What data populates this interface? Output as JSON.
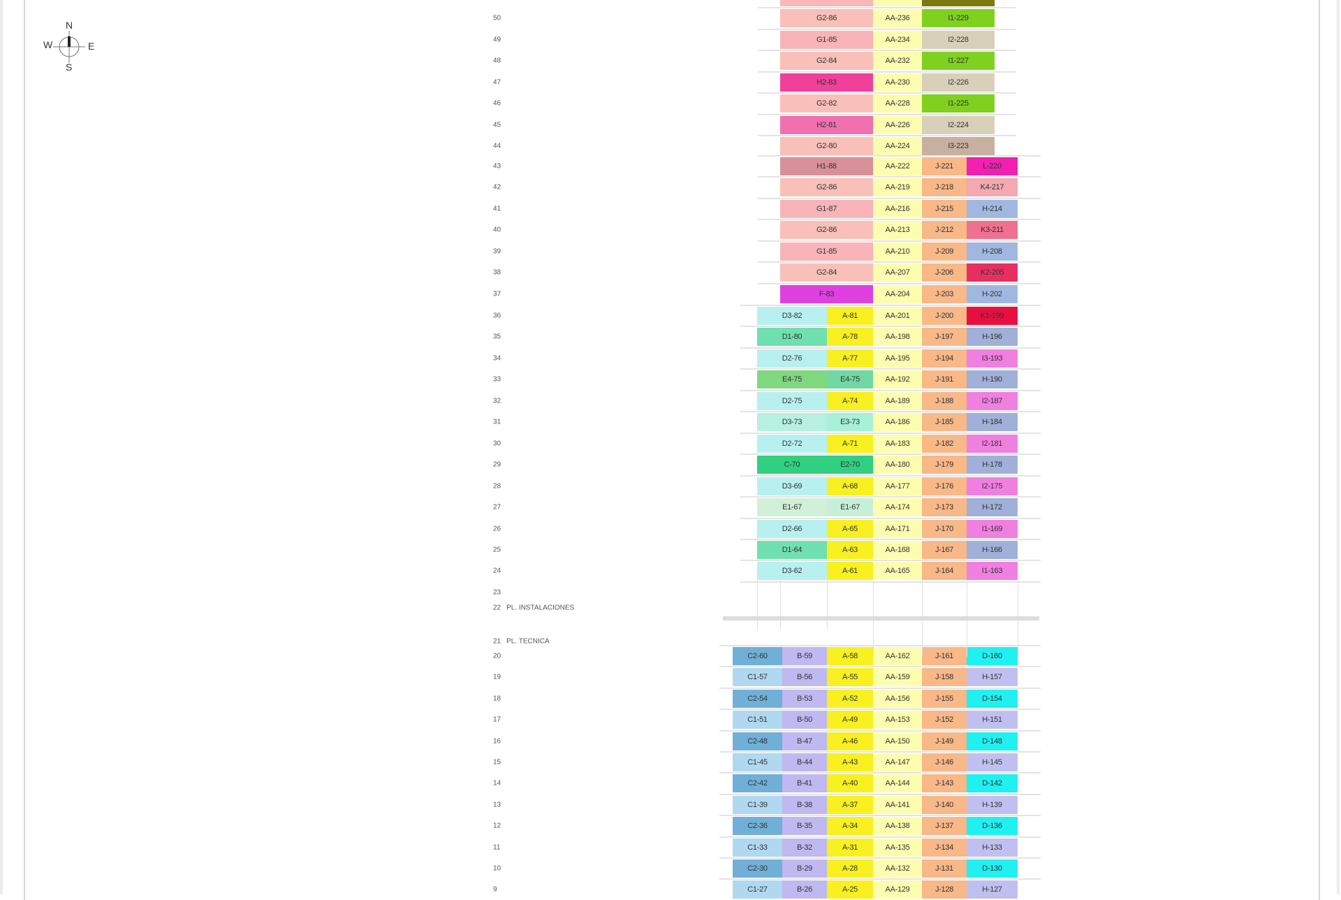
{
  "compass": {
    "n": "N",
    "s": "S",
    "e": "E",
    "w": "W"
  },
  "special_floors": [
    {
      "floor": "22",
      "label": "PL. INSTALACIONES"
    },
    {
      "floor": "21",
      "label": "PL. TECNICA"
    }
  ],
  "sections": [
    {
      "layout": "upper",
      "floors": [
        {
          "floor": "",
          "units": [
            [
              "",
              "#f8b8b8"
            ],
            [
              "",
              "#fdfdb0"
            ],
            [
              "",
              "#7a7a10"
            ]
          ]
        },
        {
          "floor": "50",
          "units": [
            [
              "G2-86",
              "#f8c0b8"
            ],
            [
              "AA-236",
              "#fdfdb0"
            ],
            [
              "I1-229",
              "#80d020"
            ]
          ]
        },
        {
          "floor": "49",
          "units": [
            [
              "G1-85",
              "#f8b4b8"
            ],
            [
              "AA-234",
              "#fdfdb0"
            ],
            [
              "I2-228",
              "#d8d0b8"
            ]
          ]
        },
        {
          "floor": "48",
          "units": [
            [
              "G2-84",
              "#f8c0b8"
            ],
            [
              "AA-232",
              "#fdfdb0"
            ],
            [
              "I1-227",
              "#80d020"
            ]
          ]
        },
        {
          "floor": "47",
          "units": [
            [
              "H2-83",
              "#f0409a"
            ],
            [
              "AA-230",
              "#fdfdb0"
            ],
            [
              "I2-226",
              "#d8d0b8"
            ]
          ]
        },
        {
          "floor": "46",
          "units": [
            [
              "G2-82",
              "#f8c0b8"
            ],
            [
              "AA-228",
              "#fdfdb0"
            ],
            [
              "I1-225",
              "#80d020"
            ]
          ]
        },
        {
          "floor": "45",
          "units": [
            [
              "H2-81",
              "#f070b0"
            ],
            [
              "AA-226",
              "#fdfdb0"
            ],
            [
              "I2-224",
              "#d8d0b8"
            ]
          ]
        },
        {
          "floor": "44",
          "units": [
            [
              "G2-80",
              "#f8c0b8"
            ],
            [
              "AA-224",
              "#fdfdb0"
            ],
            [
              "I3-223",
              "#c8b0a0"
            ]
          ]
        }
      ]
    },
    {
      "layout": "mid",
      "floors": [
        {
          "floor": "43",
          "units": [
            [
              "H1-88",
              "#d89098"
            ],
            [
              "AA-222",
              "#fdfdb0"
            ],
            [
              "J-221",
              "#f8b888"
            ],
            [
              "L-220",
              "#f020b0"
            ]
          ]
        },
        {
          "floor": "42",
          "units": [
            [
              "G2-86",
              "#f8c0b8"
            ],
            [
              "AA-219",
              "#fdfdb0"
            ],
            [
              "J-218",
              "#f8b888"
            ],
            [
              "K4-217",
              "#f4a8b0"
            ]
          ]
        },
        {
          "floor": "41",
          "units": [
            [
              "G1-87",
              "#f8b4b8"
            ],
            [
              "AA-216",
              "#fdfdb0"
            ],
            [
              "J-215",
              "#f8b888"
            ],
            [
              "H-214",
              "#a0b8e0"
            ]
          ]
        },
        {
          "floor": "40",
          "units": [
            [
              "G2-86",
              "#f8c0b8"
            ],
            [
              "AA-213",
              "#fdfdb0"
            ],
            [
              "J-212",
              "#f8b888"
            ],
            [
              "K3-211",
              "#f07090"
            ]
          ]
        },
        {
          "floor": "39",
          "units": [
            [
              "G1-85",
              "#f8b4b8"
            ],
            [
              "AA-210",
              "#fdfdb0"
            ],
            [
              "J-209",
              "#f8b888"
            ],
            [
              "H-208",
              "#a0b8e0"
            ]
          ]
        },
        {
          "floor": "38",
          "units": [
            [
              "G2-84",
              "#f8c0b8"
            ],
            [
              "AA-207",
              "#fdfdb0"
            ],
            [
              "J-206",
              "#f8b888"
            ],
            [
              "K2-205",
              "#e83060"
            ]
          ]
        },
        {
          "floor": "37",
          "units": [
            [
              "F-83",
              "#e040e0"
            ],
            [
              "AA-204",
              "#fdfdb0"
            ],
            [
              "J-203",
              "#f8b888"
            ],
            [
              "H-202",
              "#a0b8e0"
            ]
          ]
        }
      ]
    },
    {
      "layout": "low",
      "floors": [
        {
          "floor": "36",
          "units": [
            [
              "D3-82",
              "#b8f0f0"
            ],
            [
              "A-81",
              "#f8f020"
            ],
            [
              "AA-201",
              "#fdfdb0"
            ],
            [
              "J-200",
              "#f8b888"
            ],
            [
              "K1-199",
              "#e81040"
            ]
          ]
        },
        {
          "floor": "35",
          "units": [
            [
              "D1-80",
              "#70e0b0"
            ],
            [
              "A-78",
              "#f8f020"
            ],
            [
              "AA-198",
              "#fdfdb0"
            ],
            [
              "J-197",
              "#f8b888"
            ],
            [
              "H-196",
              "#a0b0d8"
            ]
          ]
        },
        {
          "floor": "34",
          "units": [
            [
              "D2-76",
              "#b8f0f0"
            ],
            [
              "A-77",
              "#f8f020"
            ],
            [
              "AA-195",
              "#fdfdb0"
            ],
            [
              "J-194",
              "#f8b888"
            ],
            [
              "I3-193",
              "#f080e0"
            ]
          ]
        },
        {
          "floor": "33",
          "units": [
            [
              "E4-75",
              "#80d880"
            ],
            [
              "E4-75",
              "#70d8a0"
            ],
            [
              "AA-192",
              "#fdfdb0"
            ],
            [
              "J-191",
              "#f8b888"
            ],
            [
              "H-190",
              "#a0b0d8"
            ]
          ]
        },
        {
          "floor": "32",
          "units": [
            [
              "D2-75",
              "#b8f0f0"
            ],
            [
              "A-74",
              "#f8f020"
            ],
            [
              "AA-189",
              "#fdfdb0"
            ],
            [
              "J-188",
              "#f8b888"
            ],
            [
              "I2-187",
              "#f080e0"
            ]
          ]
        },
        {
          "floor": "31",
          "units": [
            [
              "D3-73",
              "#b8f0e0"
            ],
            [
              "E3-73",
              "#a8f0d8"
            ],
            [
              "AA-186",
              "#fdfdb0"
            ],
            [
              "J-185",
              "#f8b888"
            ],
            [
              "H-184",
              "#a0b0d8"
            ]
          ]
        },
        {
          "floor": "30",
          "units": [
            [
              "D2-72",
              "#b8f0f0"
            ],
            [
              "A-71",
              "#f8f020"
            ],
            [
              "AA-183",
              "#fdfdb0"
            ],
            [
              "J-182",
              "#f8b888"
            ],
            [
              "I2-181",
              "#f080e0"
            ]
          ]
        },
        {
          "floor": "29",
          "units": [
            [
              "C-70",
              "#30d080"
            ],
            [
              "E2-70",
              "#30d080"
            ],
            [
              "AA-180",
              "#fdfdb0"
            ],
            [
              "J-179",
              "#f8b888"
            ],
            [
              "H-178",
              "#a0b0d8"
            ]
          ]
        },
        {
          "floor": "28",
          "units": [
            [
              "D3-69",
              "#b8f0f0"
            ],
            [
              "A-68",
              "#f8f020"
            ],
            [
              "AA-177",
              "#fdfdb0"
            ],
            [
              "J-176",
              "#f8b888"
            ],
            [
              "I2-175",
              "#f080e0"
            ]
          ]
        },
        {
          "floor": "27",
          "units": [
            [
              "E1-67",
              "#d0f0d8"
            ],
            [
              "E1-67",
              "#c8f0d8"
            ],
            [
              "AA-174",
              "#fdfdb0"
            ],
            [
              "J-173",
              "#f8b888"
            ],
            [
              "H-172",
              "#a0b0d8"
            ]
          ]
        },
        {
          "floor": "26",
          "units": [
            [
              "D2-66",
              "#b8f0f0"
            ],
            [
              "A-65",
              "#f8f020"
            ],
            [
              "AA-171",
              "#fdfdb0"
            ],
            [
              "J-170",
              "#f8b888"
            ],
            [
              "I1-169",
              "#f080e0"
            ]
          ]
        },
        {
          "floor": "25",
          "units": [
            [
              "D1-64",
              "#70e0b0"
            ],
            [
              "A-63",
              "#f8f020"
            ],
            [
              "AA-168",
              "#fdfdb0"
            ],
            [
              "J-167",
              "#f8b888"
            ],
            [
              "H-166",
              "#a0b0d8"
            ]
          ]
        },
        {
          "floor": "24",
          "units": [
            [
              "D3-62",
              "#b8f0f0"
            ],
            [
              "A-61",
              "#f8f020"
            ],
            [
              "AA-165",
              "#fdfdb0"
            ],
            [
              "J-164",
              "#f8b888"
            ],
            [
              "I1-163",
              "#f080e0"
            ]
          ]
        },
        {
          "floor": "23",
          "units": []
        }
      ]
    },
    {
      "layout": "base",
      "floors": [
        {
          "floor": "20",
          "units": [
            [
              "C2-60",
              "#70b0d8"
            ],
            [
              "B-59",
              "#c0b8f0"
            ],
            [
              "A-58",
              "#f8f020"
            ],
            [
              "AA-162",
              "#fdfdb0"
            ],
            [
              "J-161",
              "#f8b888"
            ],
            [
              "D-160",
              "#20f0f0"
            ]
          ]
        },
        {
          "floor": "19",
          "units": [
            [
              "C1-57",
              "#b0d8f0"
            ],
            [
              "B-56",
              "#c0b8f0"
            ],
            [
              "A-55",
              "#f8f020"
            ],
            [
              "AA-159",
              "#fdfdb0"
            ],
            [
              "J-158",
              "#f8b888"
            ],
            [
              "H-157",
              "#c0c0f0"
            ]
          ]
        },
        {
          "floor": "18",
          "units": [
            [
              "C2-54",
              "#70b0d8"
            ],
            [
              "B-53",
              "#c0b8f0"
            ],
            [
              "A-52",
              "#f8f020"
            ],
            [
              "AA-156",
              "#fdfdb0"
            ],
            [
              "J-155",
              "#f8b888"
            ],
            [
              "D-154",
              "#20f0f0"
            ]
          ]
        },
        {
          "floor": "17",
          "units": [
            [
              "C1-51",
              "#b0d8f0"
            ],
            [
              "B-50",
              "#c0b8f0"
            ],
            [
              "A-49",
              "#f8f020"
            ],
            [
              "AA-153",
              "#fdfdb0"
            ],
            [
              "J-152",
              "#f8b888"
            ],
            [
              "H-151",
              "#c0c0f0"
            ]
          ]
        },
        {
          "floor": "16",
          "units": [
            [
              "C2-48",
              "#70b0d8"
            ],
            [
              "B-47",
              "#c0b8f0"
            ],
            [
              "A-46",
              "#f8f020"
            ],
            [
              "AA-150",
              "#fdfdb0"
            ],
            [
              "J-149",
              "#f8b888"
            ],
            [
              "D-148",
              "#20f0f0"
            ]
          ]
        },
        {
          "floor": "15",
          "units": [
            [
              "C1-45",
              "#b0d8f0"
            ],
            [
              "B-44",
              "#c0b8f0"
            ],
            [
              "A-43",
              "#f8f020"
            ],
            [
              "AA-147",
              "#fdfdb0"
            ],
            [
              "J-146",
              "#f8b888"
            ],
            [
              "H-145",
              "#c0c0f0"
            ]
          ]
        },
        {
          "floor": "14",
          "units": [
            [
              "C2-42",
              "#70b0d8"
            ],
            [
              "B-41",
              "#c0b8f0"
            ],
            [
              "A-40",
              "#f8f020"
            ],
            [
              "AA-144",
              "#fdfdb0"
            ],
            [
              "J-143",
              "#f8b888"
            ],
            [
              "D-142",
              "#20f0f0"
            ]
          ]
        },
        {
          "floor": "13",
          "units": [
            [
              "C1-39",
              "#b0d8f0"
            ],
            [
              "B-38",
              "#c0b8f0"
            ],
            [
              "A-37",
              "#f8f020"
            ],
            [
              "AA-141",
              "#fdfdb0"
            ],
            [
              "J-140",
              "#f8b888"
            ],
            [
              "H-139",
              "#c0c0f0"
            ]
          ]
        },
        {
          "floor": "12",
          "units": [
            [
              "C2-36",
              "#70b0d8"
            ],
            [
              "B-35",
              "#c0b8f0"
            ],
            [
              "A-34",
              "#f8f020"
            ],
            [
              "AA-138",
              "#fdfdb0"
            ],
            [
              "J-137",
              "#f8b888"
            ],
            [
              "D-136",
              "#20f0f0"
            ]
          ]
        },
        {
          "floor": "11",
          "units": [
            [
              "C1-33",
              "#b0d8f0"
            ],
            [
              "B-32",
              "#c0b8f0"
            ],
            [
              "A-31",
              "#f8f020"
            ],
            [
              "AA-135",
              "#fdfdb0"
            ],
            [
              "J-134",
              "#f8b888"
            ],
            [
              "H-133",
              "#c0c0f0"
            ]
          ]
        },
        {
          "floor": "10",
          "units": [
            [
              "C2-30",
              "#70b0d8"
            ],
            [
              "B-29",
              "#c0b8f0"
            ],
            [
              "A-28",
              "#f8f020"
            ],
            [
              "AA-132",
              "#fdfdb0"
            ],
            [
              "J-131",
              "#f8b888"
            ],
            [
              "D-130",
              "#20f0f0"
            ]
          ]
        },
        {
          "floor": "9",
          "units": [
            [
              "C1-27",
              "#b0d8f0"
            ],
            [
              "B-26",
              "#c0b8f0"
            ],
            [
              "A-25",
              "#f8f020"
            ],
            [
              "AA-129",
              "#fdfdb0"
            ],
            [
              "J-128",
              "#f8b888"
            ],
            [
              "H-127",
              "#c0c0f0"
            ]
          ]
        }
      ]
    }
  ]
}
